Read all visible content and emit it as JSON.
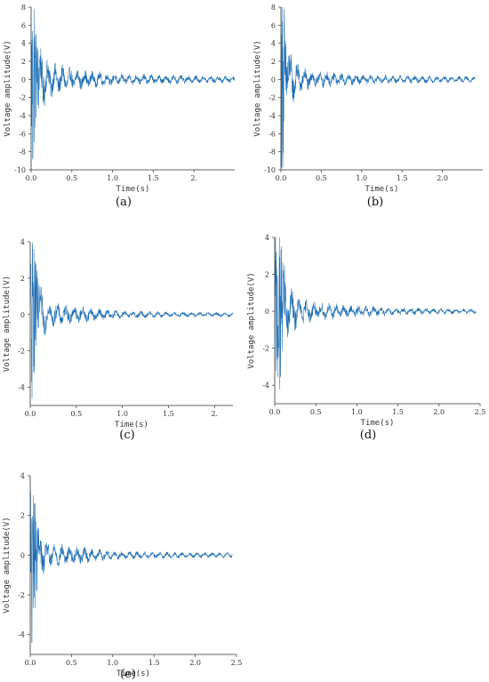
{
  "chart_data": [
    {
      "type": "line",
      "caption": "(a)",
      "xlabel": "Time(s)",
      "ylabel": "Voltage amplitude(V)",
      "xlim": [
        0,
        2.5
      ],
      "ylim": [
        -10,
        8
      ],
      "xticks": [
        0,
        0.5,
        1.0,
        1.5,
        2.0
      ],
      "xtick_labels": [
        "0.0",
        "0.5",
        "1.0",
        "1.5",
        "2."
      ],
      "yticks": [
        8,
        6,
        4,
        2,
        0,
        -2,
        -4,
        -6,
        -8,
        -10
      ],
      "x_end": 2.5,
      "series": [
        {
          "color": "#1f6fb5",
          "points": [
            [
              0.02,
              -8.8
            ],
            [
              0.04,
              7.8
            ],
            [
              0.06,
              5.0
            ],
            [
              0.1,
              3.8
            ],
            [
              0.2,
              2.2
            ],
            [
              0.3,
              1.6
            ],
            [
              0.5,
              1.2
            ],
            [
              0.8,
              0.8
            ],
            [
              1.0,
              0.6
            ],
            [
              1.5,
              0.5
            ],
            [
              2.0,
              0.4
            ],
            [
              2.5,
              0.35
            ]
          ]
        }
      ]
    },
    {
      "type": "line",
      "caption": "(b)",
      "xlabel": "Time(s)",
      "ylabel": "Voltage amplitude(V)",
      "xlim": [
        0,
        2.5
      ],
      "ylim": [
        -10,
        8
      ],
      "xticks": [
        0,
        0.5,
        1.0,
        1.5,
        2.0
      ],
      "xtick_labels": [
        "0.0",
        "0.5",
        "1.0",
        "1.5",
        "2.0"
      ],
      "yticks": [
        8,
        6,
        4,
        2,
        0,
        -2,
        -4,
        -6,
        -8,
        -10
      ],
      "x_end": 2.4,
      "series": [
        {
          "color": "#1f6fb5",
          "points": [
            [
              0.02,
              -9.8
            ],
            [
              0.04,
              7.8
            ],
            [
              0.06,
              3.8
            ],
            [
              0.1,
              3.2
            ],
            [
              0.2,
              1.8
            ],
            [
              0.3,
              1.2
            ],
            [
              0.5,
              0.9
            ],
            [
              0.8,
              0.6
            ],
            [
              1.0,
              0.5
            ],
            [
              1.5,
              0.4
            ],
            [
              2.0,
              0.35
            ],
            [
              2.4,
              0.3
            ]
          ]
        }
      ]
    },
    {
      "type": "line",
      "caption": "(c)",
      "xlabel": "Time(s)",
      "ylabel": "Voltage amplitude(V)",
      "xlim": [
        0,
        2.2
      ],
      "ylim": [
        -5,
        4
      ],
      "xticks": [
        0,
        0.5,
        1.0,
        1.5,
        2.0
      ],
      "xtick_labels": [
        "0.0",
        "0.5",
        "1.0",
        "1.5",
        "2."
      ],
      "yticks": [
        4,
        2,
        0,
        -2,
        -4
      ],
      "x_end": 2.2,
      "series": [
        {
          "color": "#1f6fb5",
          "points": [
            [
              0.02,
              -4.6
            ],
            [
              0.04,
              3.6
            ],
            [
              0.06,
              2.8
            ],
            [
              0.1,
              1.5
            ],
            [
              0.2,
              0.7
            ],
            [
              0.4,
              0.5
            ],
            [
              0.6,
              0.4
            ],
            [
              0.8,
              0.3
            ],
            [
              1.0,
              0.2
            ],
            [
              1.5,
              0.15
            ],
            [
              2.2,
              0.12
            ]
          ]
        }
      ]
    },
    {
      "type": "line",
      "caption": "(d)",
      "xlabel": "Time(s)",
      "ylabel": "Voltage amplitude(V)",
      "xlim": [
        0,
        2.5
      ],
      "ylim": [
        -5,
        4
      ],
      "xticks": [
        0,
        0.5,
        1.0,
        1.5,
        2.0,
        2.5
      ],
      "xtick_labels": [
        "0.0",
        "0.5",
        "1.0",
        "1.5",
        "2.0",
        "2.5"
      ],
      "yticks": [
        4,
        2,
        0,
        -2,
        -4
      ],
      "x_end": 2.45,
      "series": [
        {
          "color": "#1f6fb5",
          "points": [
            [
              0.06,
              -4.2
            ],
            [
              0.08,
              3.5
            ],
            [
              0.1,
              2.6
            ],
            [
              0.2,
              1.2
            ],
            [
              0.3,
              0.7
            ],
            [
              0.5,
              0.5
            ],
            [
              0.8,
              0.35
            ],
            [
              1.0,
              0.3
            ],
            [
              1.5,
              0.2
            ],
            [
              2.0,
              0.15
            ],
            [
              2.45,
              0.12
            ]
          ]
        }
      ]
    },
    {
      "type": "line",
      "caption": "(e)",
      "xlabel": "Time(s)",
      "ylabel": "Voltage amplitude(V)",
      "xlim": [
        0,
        2.5
      ],
      "ylim": [
        -5,
        4
      ],
      "xticks": [
        0,
        0.5,
        1.0,
        1.5,
        2.0,
        2.5
      ],
      "xtick_labels": [
        "0.0",
        "0.5",
        "1.0",
        "1.5",
        "2.0",
        "2.5"
      ],
      "yticks": [
        4,
        2,
        0,
        -2,
        -4
      ],
      "x_end": 2.45,
      "series": [
        {
          "color": "#1f6fb5",
          "points": [
            [
              0.02,
              -4.4
            ],
            [
              0.04,
              3.0
            ],
            [
              0.06,
              2.6
            ],
            [
              0.1,
              1.4
            ],
            [
              0.2,
              0.7
            ],
            [
              0.4,
              0.5
            ],
            [
              0.6,
              0.4
            ],
            [
              0.8,
              0.3
            ],
            [
              1.0,
              0.2
            ],
            [
              1.5,
              0.15
            ],
            [
              2.45,
              0.12
            ]
          ]
        }
      ]
    }
  ]
}
